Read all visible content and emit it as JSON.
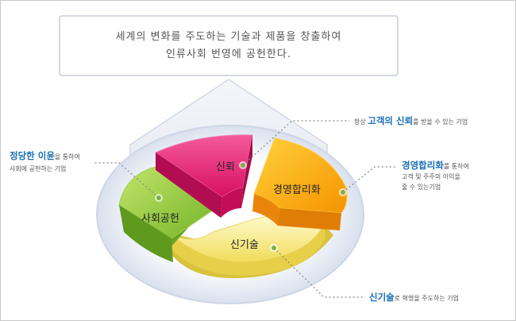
{
  "mission": {
    "line1": "세계의 변화를 주도하는 기술과 제품을 창출하여",
    "line2": "인류사회 번영에 공헌한다."
  },
  "segments": {
    "trust": "신뢰",
    "management": "경영합리화",
    "technology": "신기술",
    "social": "사회공헌"
  },
  "callouts": {
    "trust": {
      "prefix": "항상 ",
      "highlight": "고객의 신뢰",
      "suffix": "를 받을 수 있는 기업"
    },
    "management": {
      "highlight": "경영합리화",
      "suffix": "를 통하여",
      "line2": "고객 및 주주의 이익을",
      "line3": "줄 수 있는기업"
    },
    "technology": {
      "highlight": "신기술",
      "suffix": "로 혁명을 주도하는 기업"
    },
    "social": {
      "highlight": "정당한 이윤",
      "suffix": "을 통하여",
      "line2": "사회에 공헌하는 기업"
    }
  },
  "colors": {
    "highlight": "#1a6fb5",
    "trust": "#e8176f",
    "management": "#f7a400",
    "technology": "#f3e26a",
    "social": "#8dc43c"
  }
}
